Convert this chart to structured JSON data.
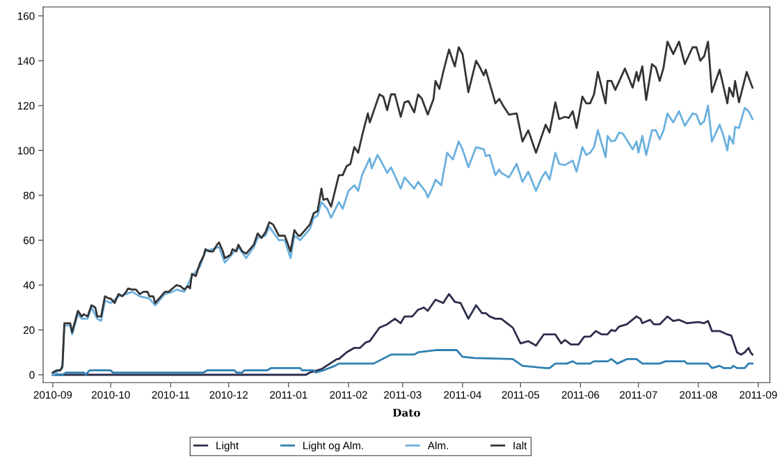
{
  "chart_data": {
    "type": "line",
    "xlabel": "Dato",
    "xlim": [
      "2010-08-27",
      "2011-09-07"
    ],
    "ylim": [
      -3.5,
      164
    ],
    "yticks": [
      0,
      20,
      40,
      60,
      80,
      100,
      120,
      140,
      160
    ],
    "xticks": [
      {
        "value": "2010-09-01",
        "label": "2010-09"
      },
      {
        "value": "2010-10-01",
        "label": "2010-10"
      },
      {
        "value": "2010-11-01",
        "label": "2010-11"
      },
      {
        "value": "2010-12-01",
        "label": "2010-12"
      },
      {
        "value": "2011-01-01",
        "label": "2011-01"
      },
      {
        "value": "2011-02-01",
        "label": "2011-02"
      },
      {
        "value": "2011-03-01",
        "label": "2011-03"
      },
      {
        "value": "2011-04-01",
        "label": "2011-04"
      },
      {
        "value": "2011-05-01",
        "label": "2011-05"
      },
      {
        "value": "2011-06-01",
        "label": "2011-06"
      },
      {
        "value": "2011-07-01",
        "label": "2011-07"
      },
      {
        "value": "2011-08-01",
        "label": "2011-08"
      },
      {
        "value": "2011-09-01",
        "label": "2011-09"
      }
    ],
    "grid": false,
    "legend": "bottom",
    "marker": "none",
    "line_style": "solid",
    "series": [
      {
        "name": "Light",
        "color": "#2b2d4a",
        "x": [
          "2010-09-01",
          "2011-01-10",
          "2011-01-12",
          "2011-01-18",
          "2011-01-26",
          "2011-01-27",
          "2011-01-31",
          "2011-02-04",
          "2011-02-07",
          "2011-02-10",
          "2011-02-12",
          "2011-02-17",
          "2011-02-21",
          "2011-02-25",
          "2011-02-28",
          "2011-03-02",
          "2011-03-06",
          "2011-03-09",
          "2011-03-12",
          "2011-03-14",
          "2011-03-18",
          "2011-03-22",
          "2011-03-25",
          "2011-03-28",
          "2011-03-31",
          "2011-04-04",
          "2011-04-08",
          "2011-04-11",
          "2011-04-13",
          "2011-04-15",
          "2011-04-18",
          "2011-04-21",
          "2011-04-24",
          "2011-04-27",
          "2011-05-01",
          "2011-05-05",
          "2011-05-09",
          "2011-05-13",
          "2011-05-19",
          "2011-05-22",
          "2011-05-24",
          "2011-05-27",
          "2011-05-31",
          "2011-06-03",
          "2011-06-06",
          "2011-06-09",
          "2011-06-12",
          "2011-06-15",
          "2011-06-17",
          "2011-06-19",
          "2011-06-21",
          "2011-06-25",
          "2011-06-30",
          "2011-07-02",
          "2011-07-03",
          "2011-07-07",
          "2011-07-09",
          "2011-07-12",
          "2011-07-16",
          "2011-07-19",
          "2011-07-22",
          "2011-07-26",
          "2011-08-01",
          "2011-08-04",
          "2011-08-06",
          "2011-08-08",
          "2011-08-12",
          "2011-08-16",
          "2011-08-18",
          "2011-08-19",
          "2011-08-21",
          "2011-08-23",
          "2011-08-25",
          "2011-08-27",
          "2011-08-28",
          "2011-08-29"
        ],
        "values": [
          0,
          0,
          1,
          2.5,
          7,
          7,
          10,
          12,
          12,
          14.5,
          15,
          21,
          22.5,
          25,
          23,
          26,
          26,
          29,
          30,
          28.5,
          33.5,
          32,
          36,
          32.5,
          32,
          25,
          31,
          27.5,
          27.5,
          26,
          25,
          25,
          23,
          21,
          14,
          15,
          13,
          18,
          18,
          14,
          15.5,
          13.5,
          13.5,
          17,
          17,
          19.5,
          18,
          18,
          20,
          19.5,
          21.5,
          22.5,
          26,
          25,
          23,
          24.5,
          22.5,
          22.5,
          26,
          24,
          24.5,
          23,
          23.5,
          23,
          24,
          19.5,
          19.5,
          18,
          17.5,
          15,
          10,
          9,
          10,
          12,
          10,
          9
        ]
      },
      {
        "name": "Light og Alm.",
        "color": "#2e7fb0",
        "x": [
          "2010-09-01",
          "2010-09-06",
          "2010-09-08",
          "2010-09-17",
          "2010-09-18",
          "2010-09-20",
          "2010-10-01",
          "2010-10-02",
          "2010-11-18",
          "2010-11-20",
          "2010-12-04",
          "2010-12-05",
          "2010-12-08",
          "2010-12-09",
          "2010-12-21",
          "2010-12-23",
          "2011-01-07",
          "2011-01-08",
          "2011-01-14",
          "2011-01-15",
          "2011-01-19",
          "2011-01-25",
          "2011-01-27",
          "2011-02-14",
          "2011-02-23",
          "2011-03-07",
          "2011-03-09",
          "2011-03-18",
          "2011-03-29",
          "2011-04-01",
          "2011-04-07",
          "2011-04-27",
          "2011-05-02",
          "2011-05-14",
          "2011-05-16",
          "2011-05-19",
          "2011-05-25",
          "2011-05-28",
          "2011-05-30",
          "2011-06-06",
          "2011-06-08",
          "2011-06-15",
          "2011-06-17",
          "2011-06-20",
          "2011-06-25",
          "2011-06-30",
          "2011-07-03",
          "2011-07-12",
          "2011-07-15",
          "2011-07-25",
          "2011-07-26",
          "2011-08-06",
          "2011-08-08",
          "2011-08-12",
          "2011-08-14",
          "2011-08-18",
          "2011-08-19",
          "2011-08-21",
          "2011-08-25",
          "2011-08-27",
          "2011-08-29"
        ],
        "values": [
          0,
          0,
          1,
          1,
          0,
          2,
          2,
          1,
          1,
          2,
          2,
          1,
          1,
          2,
          2,
          3,
          3,
          2,
          2,
          1,
          2,
          4,
          5,
          5,
          9,
          9,
          10,
          11,
          11,
          8,
          7.5,
          7,
          4,
          3,
          3,
          5,
          5,
          6,
          5,
          5,
          6,
          6,
          7,
          5,
          7,
          7,
          5,
          5,
          6,
          6,
          5,
          5,
          3,
          4,
          3,
          3,
          4,
          3,
          3,
          5,
          5
        ]
      },
      {
        "name": "Alm.",
        "color": "#6ab0de",
        "x": [
          "2010-09-01",
          "2010-09-06",
          "2010-09-07",
          "2010-09-10",
          "2010-09-11",
          "2010-09-14",
          "2010-09-16",
          "2010-09-19",
          "2010-09-21",
          "2010-09-24",
          "2010-09-26",
          "2010-09-28",
          "2010-10-01",
          "2010-10-05",
          "2010-10-09",
          "2010-10-12",
          "2010-10-16",
          "2010-10-21",
          "2010-10-24",
          "2010-10-29",
          "2010-11-02",
          "2010-11-04",
          "2010-11-08",
          "2010-11-12",
          "2010-11-16",
          "2010-11-19",
          "2010-11-26",
          "2010-11-29",
          "2010-12-03",
          "2010-12-06",
          "2010-12-10",
          "2010-12-14",
          "2010-12-16",
          "2010-12-20",
          "2010-12-22",
          "2010-12-27",
          "2010-12-30",
          "2011-01-02",
          "2011-01-04",
          "2011-01-07",
          "2011-01-09",
          "2011-01-12",
          "2011-01-14",
          "2011-01-16",
          "2011-01-18",
          "2011-01-21",
          "2011-01-23",
          "2011-01-27",
          "2011-01-29",
          "2011-02-01",
          "2011-02-04",
          "2011-02-06",
          "2011-02-08",
          "2011-02-12",
          "2011-02-13",
          "2011-02-16",
          "2011-02-18",
          "2011-02-21",
          "2011-02-23",
          "2011-02-28",
          "2011-03-02",
          "2011-03-05",
          "2011-03-07",
          "2011-03-09",
          "2011-03-13",
          "2011-03-14",
          "2011-03-17",
          "2011-03-18",
          "2011-03-21",
          "2011-03-24",
          "2011-03-27",
          "2011-03-30",
          "2011-04-01",
          "2011-04-04",
          "2011-04-08",
          "2011-04-12",
          "2011-04-13",
          "2011-04-15",
          "2011-04-18",
          "2011-04-20",
          "2011-04-21",
          "2011-04-25",
          "2011-04-29",
          "2011-05-02",
          "2011-05-05",
          "2011-05-09",
          "2011-05-12",
          "2011-05-14",
          "2011-05-16",
          "2011-05-19",
          "2011-05-21",
          "2011-05-24",
          "2011-05-26",
          "2011-05-28",
          "2011-05-30",
          "2011-06-02",
          "2011-06-04",
          "2011-06-06",
          "2011-06-08",
          "2011-06-10",
          "2011-06-14",
          "2011-06-15",
          "2011-06-17",
          "2011-06-19",
          "2011-06-21",
          "2011-06-23",
          "2011-06-28",
          "2011-06-30",
          "2011-07-01",
          "2011-07-03",
          "2011-07-05",
          "2011-07-08",
          "2011-07-10",
          "2011-07-12",
          "2011-07-14",
          "2011-07-16",
          "2011-07-19",
          "2011-07-22",
          "2011-07-25",
          "2011-07-29",
          "2011-07-31",
          "2011-08-02",
          "2011-08-04",
          "2011-08-06",
          "2011-08-08",
          "2011-08-12",
          "2011-08-14",
          "2011-08-16",
          "2011-08-17",
          "2011-08-19",
          "2011-08-20",
          "2011-08-22",
          "2011-08-25",
          "2011-08-27",
          "2011-08-29"
        ],
        "values": [
          0,
          3,
          22,
          22,
          18,
          27,
          25,
          25,
          30,
          25,
          24,
          33,
          32,
          35,
          36,
          37,
          35,
          34,
          31,
          36,
          37,
          38,
          37,
          44,
          48,
          55,
          57,
          50,
          54,
          57,
          52,
          57,
          61,
          62,
          66,
          60,
          60,
          52,
          62,
          60,
          62,
          65,
          70,
          71,
          77,
          74,
          70,
          77,
          74,
          82,
          84.5,
          82,
          89,
          96.5,
          92,
          98,
          95,
          90,
          92.5,
          83,
          88,
          85,
          83,
          86,
          81.5,
          79,
          84.5,
          87,
          84.5,
          99,
          96,
          104,
          100.5,
          92.5,
          101.5,
          100.5,
          97.5,
          98,
          89,
          91.5,
          90,
          88,
          94,
          86,
          90.5,
          82,
          88,
          90.5,
          87,
          99,
          94,
          93.5,
          94.5,
          95.5,
          90.5,
          101.5,
          98,
          99,
          101.5,
          109,
          97,
          106.5,
          104,
          104.5,
          108,
          107.5,
          100.5,
          104,
          99,
          106.5,
          98,
          109,
          109,
          105,
          109,
          116.5,
          112.5,
          117.5,
          111,
          116.5,
          116,
          111.5,
          113,
          120,
          104,
          111.5,
          106.5,
          100,
          106.5,
          103,
          110.5,
          110,
          119,
          117.5,
          114
        ]
      },
      {
        "name": "Ialt",
        "color": "#333333",
        "x": [
          "2010-09-01",
          "2010-09-03",
          "2010-09-05",
          "2010-09-06",
          "2010-09-07",
          "2010-09-10",
          "2010-09-11",
          "2010-09-14",
          "2010-09-16",
          "2010-09-17",
          "2010-09-19",
          "2010-09-21",
          "2010-09-23",
          "2010-09-24",
          "2010-09-26",
          "2010-09-28",
          "2010-09-30",
          "2010-10-01",
          "2010-10-03",
          "2010-10-05",
          "2010-10-07",
          "2010-10-09",
          "2010-10-10",
          "2010-10-12",
          "2010-10-14",
          "2010-10-16",
          "2010-10-18",
          "2010-10-20",
          "2010-10-21",
          "2010-10-23",
          "2010-10-24",
          "2010-10-26",
          "2010-10-29",
          "2010-10-31",
          "2010-11-02",
          "2010-11-04",
          "2010-11-06",
          "2010-11-08",
          "2010-11-10",
          "2010-11-11",
          "2010-11-12",
          "2010-11-14",
          "2010-11-16",
          "2010-11-18",
          "2010-11-19",
          "2010-11-21",
          "2010-11-23",
          "2010-11-25",
          "2010-11-26",
          "2010-11-28",
          "2010-11-29",
          "2010-12-02",
          "2010-12-03",
          "2010-12-05",
          "2010-12-06",
          "2010-12-08",
          "2010-12-10",
          "2010-12-12",
          "2010-12-14",
          "2010-12-16",
          "2010-12-18",
          "2010-12-20",
          "2010-12-22",
          "2010-12-24",
          "2010-12-27",
          "2010-12-30",
          "2011-01-02",
          "2011-01-04",
          "2011-01-06",
          "2011-01-07",
          "2011-01-09",
          "2011-01-12",
          "2011-01-14",
          "2011-01-16",
          "2011-01-18",
          "2011-01-19",
          "2011-01-21",
          "2011-01-23",
          "2011-01-27",
          "2011-01-29",
          "2011-01-31",
          "2011-02-02",
          "2011-02-04",
          "2011-02-06",
          "2011-02-08",
          "2011-02-11",
          "2011-02-12",
          "2011-02-17",
          "2011-02-19",
          "2011-02-21",
          "2011-02-23",
          "2011-02-25",
          "2011-02-28",
          "2011-03-02",
          "2011-03-04",
          "2011-03-07",
          "2011-03-09",
          "2011-03-11",
          "2011-03-14",
          "2011-03-17",
          "2011-03-18",
          "2011-03-20",
          "2011-03-22",
          "2011-03-25",
          "2011-03-28",
          "2011-03-30",
          "2011-04-01",
          "2011-04-04",
          "2011-04-08",
          "2011-04-10",
          "2011-04-12",
          "2011-04-13",
          "2011-04-15",
          "2011-04-18",
          "2011-04-20",
          "2011-04-22",
          "2011-04-25",
          "2011-04-29",
          "2011-05-02",
          "2011-05-05",
          "2011-05-09",
          "2011-05-12",
          "2011-05-14",
          "2011-05-16",
          "2011-05-19",
          "2011-05-21",
          "2011-05-24",
          "2011-05-26",
          "2011-05-28",
          "2011-05-30",
          "2011-06-02",
          "2011-06-04",
          "2011-06-06",
          "2011-06-08",
          "2011-06-10",
          "2011-06-14",
          "2011-06-15",
          "2011-06-17",
          "2011-06-19",
          "2011-06-24",
          "2011-06-28",
          "2011-06-30",
          "2011-07-01",
          "2011-07-03",
          "2011-07-05",
          "2011-07-08",
          "2011-07-10",
          "2011-07-12",
          "2011-07-14",
          "2011-07-16",
          "2011-07-19",
          "2011-07-22",
          "2011-07-25",
          "2011-07-29",
          "2011-07-31",
          "2011-08-02",
          "2011-08-04",
          "2011-08-06",
          "2011-08-08",
          "2011-08-12",
          "2011-08-14",
          "2011-08-16",
          "2011-08-17",
          "2011-08-19",
          "2011-08-20",
          "2011-08-22",
          "2011-08-26",
          "2011-08-29"
        ],
        "values": [
          1,
          2,
          2,
          4,
          23,
          23,
          19,
          28.5,
          26,
          27,
          26,
          31,
          30,
          26,
          26,
          35,
          34,
          34,
          32,
          36,
          35,
          37,
          38.5,
          38,
          38,
          36,
          37,
          37,
          35,
          35,
          32,
          34,
          37,
          37,
          38.5,
          40,
          39.5,
          38,
          39.5,
          38.5,
          45,
          44,
          49.5,
          53,
          56,
          55,
          55,
          58,
          59,
          55,
          52,
          53.5,
          56,
          55,
          58,
          55,
          54,
          56,
          58,
          63,
          61,
          63.5,
          68,
          67,
          62,
          62,
          55,
          64.5,
          62,
          62,
          64,
          67,
          72,
          73,
          83,
          78,
          78.5,
          75,
          89,
          89,
          93,
          94,
          101.5,
          99,
          106.5,
          116.5,
          112.5,
          125,
          124,
          118,
          125,
          125,
          115,
          121.5,
          122,
          117,
          125,
          123,
          116,
          123,
          131,
          127.5,
          135,
          145,
          137.5,
          146,
          143,
          126,
          140,
          137,
          133.5,
          136,
          130,
          121,
          123,
          120,
          116,
          116.5,
          104,
          109,
          99,
          106.5,
          111.5,
          108,
          121.5,
          114,
          115,
          114.5,
          117.5,
          110,
          124,
          121,
          121,
          125,
          135,
          121,
          131,
          131,
          127,
          136.5,
          128,
          135,
          131,
          137.5,
          122.5,
          138.5,
          137,
          131,
          137,
          148.5,
          143,
          148.5,
          138.5,
          146,
          146,
          140,
          142,
          148.5,
          126,
          136,
          128.5,
          121,
          128,
          124,
          131,
          121.5,
          135,
          128
        ]
      }
    ]
  }
}
